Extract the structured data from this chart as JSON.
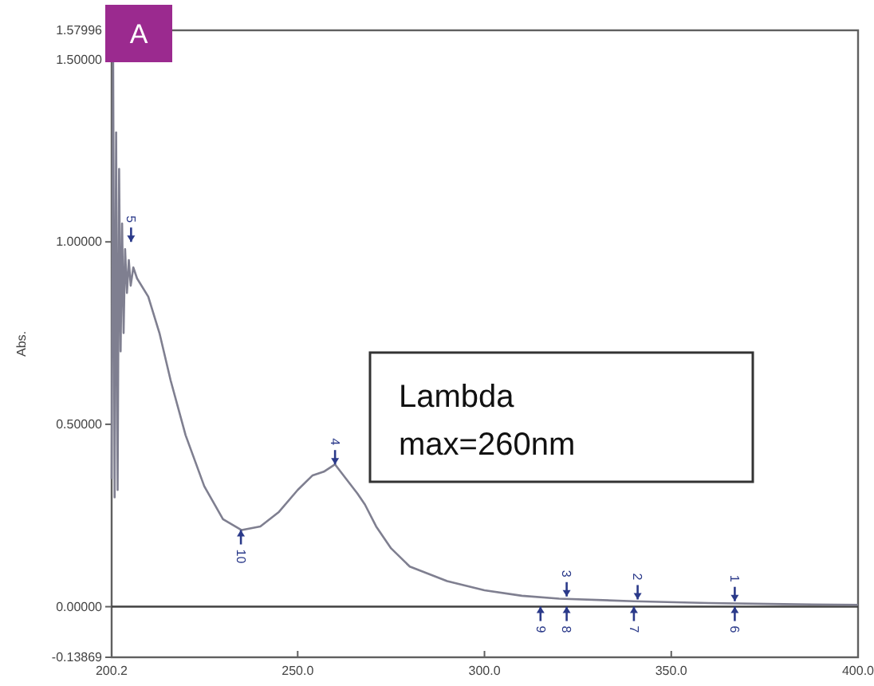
{
  "chart_data": {
    "type": "line",
    "ylabel": "Abs.",
    "x": [
      200.2,
      200.6,
      201.0,
      201.4,
      201.8,
      202.2,
      202.6,
      203.0,
      203.4,
      203.8,
      204.3,
      204.8,
      205.3,
      206.0,
      207.0,
      210,
      213,
      216,
      220,
      225,
      230,
      235,
      240,
      245,
      250,
      254,
      257,
      260,
      263,
      266,
      268,
      271,
      275,
      280,
      290,
      300,
      310,
      320,
      340,
      360,
      380,
      400
    ],
    "series": [
      {
        "color": "#7f7f90",
        "values": [
          0.35,
          1.5,
          0.3,
          1.3,
          0.32,
          1.2,
          0.7,
          1.05,
          0.75,
          0.98,
          0.86,
          0.95,
          0.88,
          0.93,
          0.9,
          0.85,
          0.75,
          0.62,
          0.47,
          0.33,
          0.24,
          0.21,
          0.22,
          0.26,
          0.32,
          0.36,
          0.37,
          0.39,
          0.35,
          0.31,
          0.28,
          0.22,
          0.16,
          0.11,
          0.07,
          0.045,
          0.03,
          0.022,
          0.015,
          0.01,
          0.007,
          0.005
        ]
      }
    ],
    "xlim": [
      200.2,
      400
    ],
    "xticks": [
      200.2,
      {
        "value": 250,
        "label": "250.0"
      },
      {
        "value": 300,
        "label": "300.0"
      },
      {
        "value": 350,
        "label": "350.0"
      },
      {
        "value": 400,
        "label": "400.0"
      }
    ],
    "ylim": [
      -0.13869,
      1.57996
    ],
    "yticks": [
      {
        "value": -0.13869,
        "label": "-0.13869"
      },
      {
        "value": 0,
        "label": "0.00000"
      },
      {
        "value": 0.5,
        "label": "0.50000"
      },
      {
        "value": 1,
        "label": "1.00000"
      },
      {
        "value": 1.5,
        "label": "1.50000"
      },
      {
        "value": 1.57996,
        "label": "1.57996"
      }
    ],
    "ref_lines": [
      {
        "axis": "y",
        "value": 0,
        "color": "#404040"
      }
    ],
    "marker": "none",
    "line_style": "solid",
    "annotations": [
      "A",
      "Lambda\nmax=260nm",
      {
        "text": "1",
        "x": 367,
        "y": 0.015
      },
      {
        "text": "2",
        "x": 341,
        "y": 0.02
      },
      {
        "text": "3",
        "x": 322,
        "y": 0.028
      },
      {
        "text": "4",
        "x": 260,
        "y": 0.39
      },
      {
        "text": "5",
        "x": 205.4,
        "y": 1.0
      },
      {
        "text": "6",
        "x": 367,
        "y": 0
      },
      {
        "text": "7",
        "x": 340,
        "y": 0
      },
      {
        "text": "8",
        "x": 322,
        "y": 0
      },
      {
        "text": "9",
        "x": 315,
        "y": 0
      },
      {
        "text": "10",
        "x": 234.8,
        "y": 0.21
      }
    ]
  }
}
